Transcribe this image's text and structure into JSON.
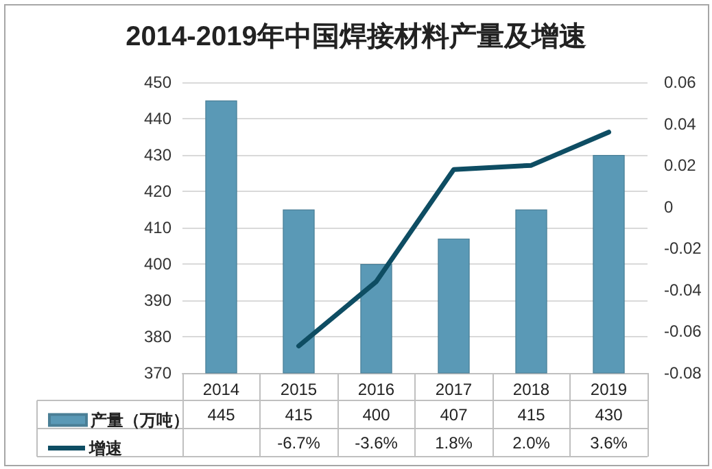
{
  "chart_data": {
    "type": "bar",
    "title": "2014-2019年中国焊接材料产量及增速",
    "categories": [
      "2014",
      "2015",
      "2016",
      "2017",
      "2018",
      "2019"
    ],
    "series": [
      {
        "name": "产量（万吨）",
        "color": "#5a99b6",
        "values": [
          445,
          415,
          400,
          407,
          415,
          430
        ],
        "value_labels": [
          "445",
          "415",
          "400",
          "407",
          "415",
          "430"
        ]
      },
      {
        "name": "增速",
        "type": "line",
        "axis": "y2",
        "color": "#0e4d63",
        "values": [
          null,
          -0.067,
          -0.036,
          0.018,
          0.02,
          0.036
        ],
        "value_labels": [
          null,
          "-6.7%",
          "-3.6%",
          "1.8%",
          "2.0%",
          "3.6%"
        ]
      }
    ],
    "ylim": [
      370,
      450
    ],
    "yticks": [
      370,
      380,
      390,
      400,
      410,
      420,
      430,
      440,
      450
    ],
    "y2lim": [
      -0.08,
      0.06
    ],
    "y2ticks": [
      -0.08,
      -0.06,
      -0.04,
      -0.02,
      0,
      0.02,
      0.04,
      0.06
    ],
    "grid": "y",
    "legend": "bottom",
    "marker": "none",
    "line_style": "solid"
  }
}
